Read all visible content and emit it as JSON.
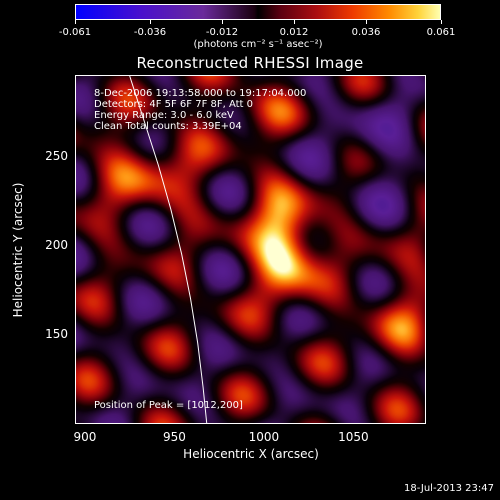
{
  "colorbar": {
    "tick_labels": [
      "-0.061",
      "-0.036",
      "-0.012",
      "0.012",
      "0.036",
      "0.061"
    ],
    "units": "(photons cm⁻² s⁻¹ asec⁻²)"
  },
  "chart_data": {
    "type": "heatmap",
    "title": "Reconstructed RHESSI Image",
    "xlabel": "Heliocentric X (arcsec)",
    "ylabel": "Heliocentric Y (arcsec)",
    "xlim": [
      895,
      1090
    ],
    "ylim": [
      100,
      295
    ],
    "x_ticks": [
      "900",
      "950",
      "1000",
      "1050"
    ],
    "y_ticks": [
      "150",
      "200",
      "250"
    ],
    "x_tick_values": [
      900,
      950,
      1000,
      1050
    ],
    "y_tick_values": [
      150,
      200,
      250
    ],
    "colorbar_range": [
      -0.061,
      0.061
    ],
    "peak": {
      "x": 1012,
      "y": 200
    },
    "limb_curve": [
      [
        925,
        295
      ],
      [
        933,
        270
      ],
      [
        941,
        245
      ],
      [
        948,
        220
      ],
      [
        954,
        195
      ],
      [
        959,
        170
      ],
      [
        963,
        145
      ],
      [
        966,
        120
      ],
      [
        968,
        100
      ]
    ],
    "annotations": [
      "8-Dec-2006 19:13:58.000 to 19:17:04.000",
      "Detectors: 4F 5F 6F 7F 8F, Att 0",
      "Energy Range: 3.0 - 6.0 keV",
      "Clean     Total counts: 3.39E+04"
    ],
    "peak_label": "Position of Peak = [1012,200]"
  },
  "footer": {
    "timestamp": "18-Jul-2013 23:47"
  }
}
